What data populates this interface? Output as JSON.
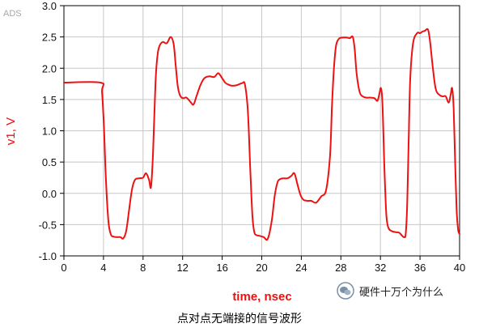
{
  "tool_label": "ADS",
  "caption": "点对点无端接的信号波形",
  "watermark": {
    "text": "硬件十万个为什么",
    "icon": "wechat-icon"
  },
  "colors": {
    "trace": "#ee1111",
    "axis_title": "#ee1111",
    "frame": "#000000",
    "grid": "#c8c8c8"
  },
  "chart_data": {
    "type": "line",
    "xlabel": "time, nsec",
    "ylabel": "v1, V",
    "xlim": [
      0,
      40
    ],
    "ylim": [
      -1.0,
      3.0
    ],
    "x_ticks": [
      0,
      4,
      8,
      12,
      16,
      20,
      24,
      28,
      32,
      36,
      40
    ],
    "x_tick_labels": [
      "0",
      "4",
      "8",
      "12",
      "16",
      "20",
      "24",
      "28",
      "32",
      "36",
      "40"
    ],
    "y_ticks": [
      -1.0,
      -0.5,
      0.0,
      0.5,
      1.0,
      1.5,
      2.0,
      2.5,
      3.0
    ],
    "y_tick_labels": [
      "-1.0",
      "-0.5",
      "0.0",
      "0.5",
      "1.0",
      "1.5",
      "2.0",
      "2.5",
      "3.0"
    ],
    "grid": true,
    "legend": "none",
    "series": [
      {
        "x": [
          0,
          3.7,
          3.85,
          4.05,
          4.25,
          4.5,
          4.75,
          5.0,
          5.3,
          5.7,
          6.0,
          6.3,
          6.6,
          6.9,
          7.2,
          7.6,
          8.0,
          8.3,
          8.6,
          8.8,
          9.0,
          9.15,
          9.3,
          9.5,
          9.7,
          10.0,
          10.4,
          10.8,
          11.1,
          11.3,
          11.5,
          11.7,
          11.9,
          12.1,
          12.4,
          12.8,
          13.1,
          13.4,
          13.8,
          14.2,
          14.7,
          15.2,
          15.6,
          16.0,
          16.3,
          16.6,
          17.0,
          17.5,
          18.0,
          18.3,
          18.6,
          18.85,
          19.05,
          19.25,
          19.5,
          19.8,
          20.2,
          20.6,
          21.0,
          21.3,
          21.6,
          21.9,
          22.2,
          22.6,
          23.0,
          23.3,
          23.6,
          23.9,
          24.2,
          24.6,
          25.0,
          25.5,
          26.0,
          26.5,
          26.9,
          27.1,
          27.3,
          27.5,
          27.8,
          28.2,
          28.6,
          28.9,
          29.2,
          29.4,
          29.6,
          29.9,
          30.2,
          30.6,
          31.0,
          31.4,
          31.7,
          31.9,
          32.05,
          32.2,
          32.4,
          32.6,
          32.8,
          33.1,
          33.5,
          33.9,
          34.2,
          34.4,
          34.55,
          34.7,
          34.85,
          35.0,
          35.3,
          35.7,
          36.0,
          36.2,
          36.5,
          36.8,
          37.0,
          37.3,
          37.6,
          38.0,
          38.3,
          38.6,
          38.9,
          39.1,
          39.25,
          39.4,
          39.55,
          39.7,
          39.85,
          40.0
        ],
        "y": [
          1.77,
          1.77,
          1.62,
          1.05,
          0.2,
          -0.45,
          -0.66,
          -0.69,
          -0.7,
          -0.7,
          -0.72,
          -0.6,
          -0.25,
          0.08,
          0.22,
          0.24,
          0.25,
          0.32,
          0.22,
          0.1,
          0.6,
          1.3,
          1.9,
          2.25,
          2.37,
          2.42,
          2.4,
          2.5,
          2.38,
          2.05,
          1.72,
          1.58,
          1.53,
          1.52,
          1.53,
          1.46,
          1.42,
          1.55,
          1.73,
          1.84,
          1.87,
          1.86,
          1.92,
          1.84,
          1.77,
          1.74,
          1.72,
          1.73,
          1.76,
          1.74,
          1.3,
          0.35,
          -0.35,
          -0.62,
          -0.67,
          -0.68,
          -0.7,
          -0.73,
          -0.45,
          -0.05,
          0.18,
          0.23,
          0.24,
          0.24,
          0.28,
          0.32,
          0.15,
          -0.02,
          -0.1,
          -0.12,
          -0.12,
          -0.15,
          -0.05,
          0.05,
          0.6,
          1.4,
          2.0,
          2.35,
          2.47,
          2.49,
          2.49,
          2.48,
          2.5,
          2.3,
          1.9,
          1.62,
          1.55,
          1.53,
          1.53,
          1.52,
          1.48,
          1.6,
          1.68,
          1.45,
          0.4,
          -0.35,
          -0.55,
          -0.6,
          -0.62,
          -0.63,
          -0.68,
          -0.7,
          -0.65,
          -0.2,
          0.8,
          1.8,
          2.4,
          2.56,
          2.56,
          2.58,
          2.6,
          2.62,
          2.45,
          2.0,
          1.66,
          1.57,
          1.55,
          1.55,
          1.45,
          1.58,
          1.68,
          1.35,
          0.5,
          -0.25,
          -0.58,
          -0.65
        ]
      }
    ]
  }
}
